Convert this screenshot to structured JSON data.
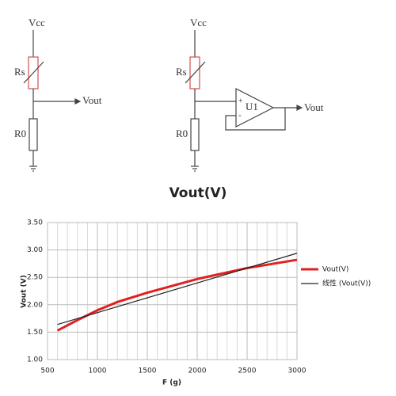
{
  "circuit_left": {
    "supply": "Vcc",
    "sensor": "Rs",
    "output": "Vout",
    "resistor": "R0"
  },
  "circuit_right": {
    "supply": "Vcc",
    "sensor": "Rs",
    "output": "Vout",
    "resistor": "R0",
    "opamp": "U1",
    "plus": "+",
    "minus": "-"
  },
  "chart_data": {
    "type": "line",
    "title": "Vout(V)",
    "xlabel": "F (g)",
    "ylabel": "Vout (V)",
    "xlim": [
      500,
      3000
    ],
    "xticks": [
      500,
      1000,
      1500,
      2000,
      2500,
      3000
    ],
    "ylim": [
      1,
      3.5
    ],
    "yticks": [
      {
        "value": 1,
        "label": "1.00"
      },
      {
        "value": 1.5,
        "label": "1.50"
      },
      {
        "value": 2,
        "label": "2.00"
      },
      {
        "value": 2.5,
        "label": "2.50"
      },
      {
        "value": 3,
        "label": "3.00"
      },
      {
        "value": 3.5,
        "label": "3.50"
      }
    ],
    "grid": true,
    "legend": "right",
    "series": [
      {
        "name": "Vout(V)",
        "color": "#e02020",
        "x": [
          600,
          800,
          1000,
          1200,
          1500,
          2000,
          2500,
          3000
        ],
        "values": [
          1.53,
          1.72,
          1.9,
          2.05,
          2.22,
          2.47,
          2.67,
          2.82
        ]
      },
      {
        "name": "线性 (Vout(V))",
        "color": "#222222",
        "x": [
          600,
          3000
        ],
        "values": [
          1.64,
          2.94
        ]
      }
    ]
  }
}
